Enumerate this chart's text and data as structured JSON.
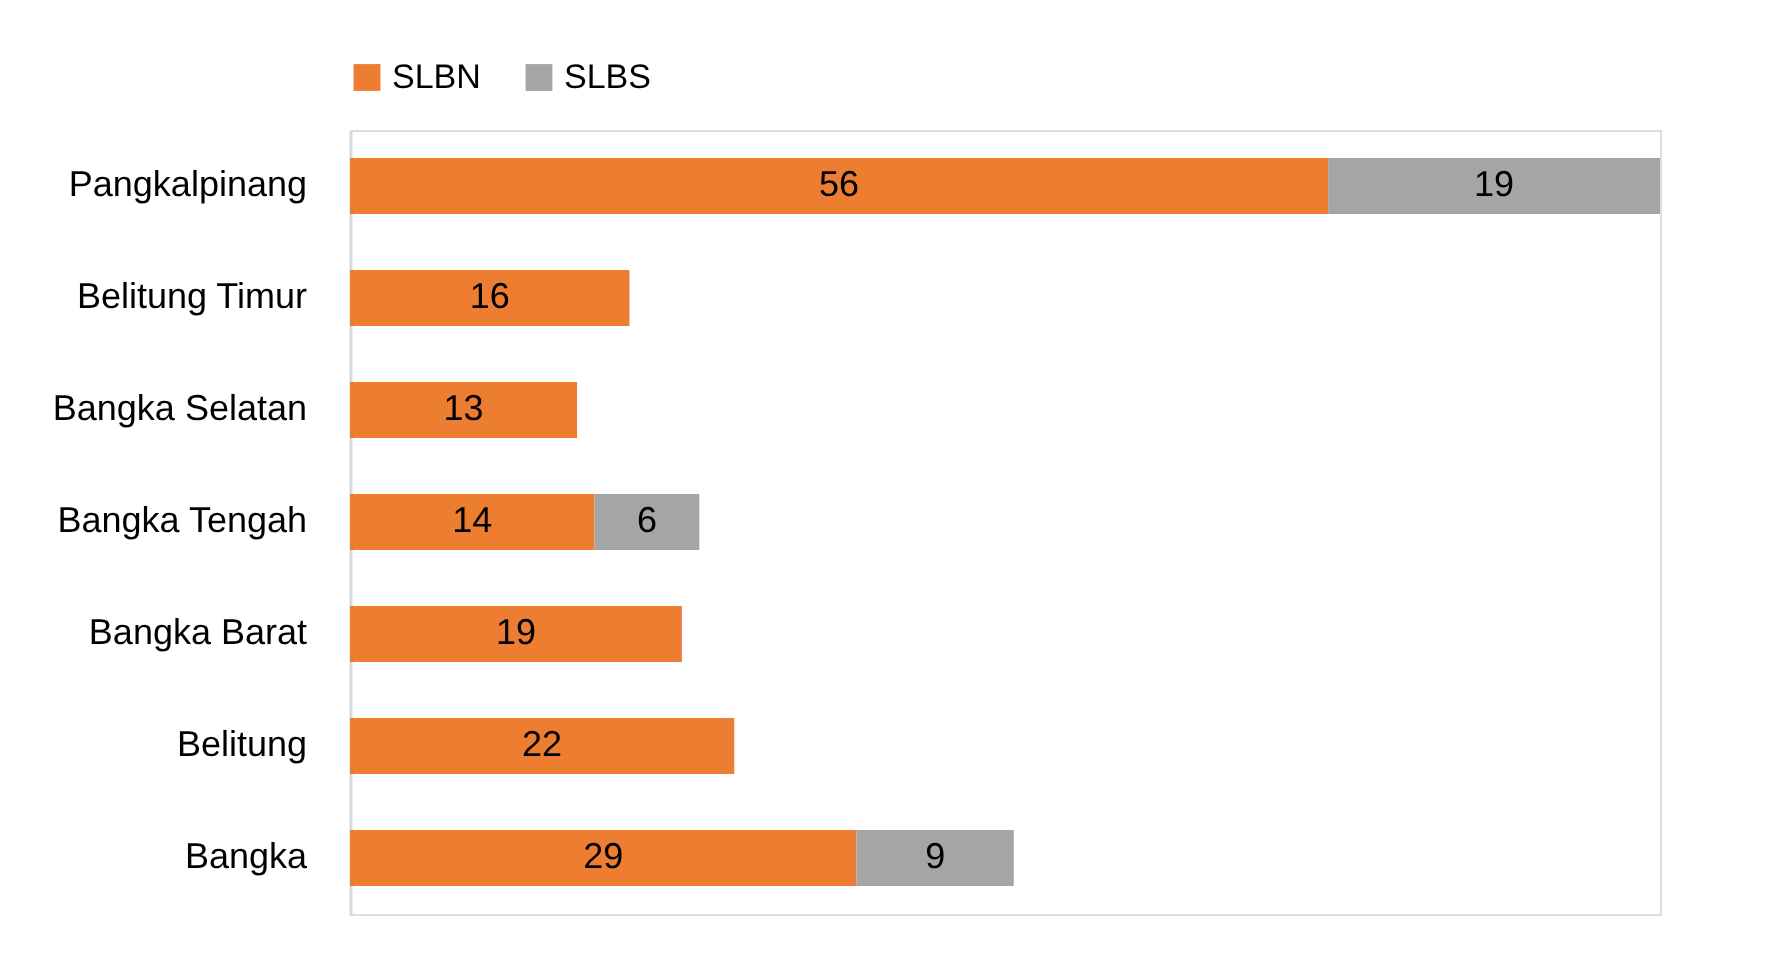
{
  "chart_data": {
    "type": "bar",
    "orientation": "horizontal",
    "stacked": true,
    "data_labels": true,
    "legend": "top",
    "categories": [
      "Pangkalpinang",
      "Belitung Timur",
      "Bangka Selatan",
      "Bangka Tengah",
      "Bangka Barat",
      "Belitung",
      "Bangka"
    ],
    "series": [
      {
        "name": "SLBN",
        "color": "#ed7d31",
        "values": [
          56,
          16,
          13,
          14,
          19,
          22,
          29
        ]
      },
      {
        "name": "SLBS",
        "color": "#a5a5a5",
        "values": [
          19,
          null,
          null,
          6,
          null,
          null,
          9
        ]
      }
    ]
  }
}
